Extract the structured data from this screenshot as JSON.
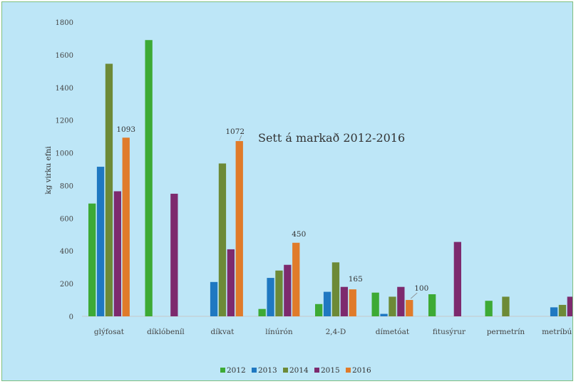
{
  "chart_data": {
    "type": "bar",
    "title": "Sett á markað 2012-2016",
    "xlabel": "",
    "ylabel": "kg virku efni",
    "ylim": [
      0,
      1800
    ],
    "yticks": [
      0,
      200,
      400,
      600,
      800,
      1000,
      1200,
      1400,
      1600,
      1800
    ],
    "grid": false,
    "legend_position": "bottom",
    "categories": [
      "glýfosat",
      "díklóbeníl",
      "díkvat",
      "línúrón",
      "2,4-D",
      "dímetóat",
      "fitusýrur",
      "permetrín",
      "metríbúsín"
    ],
    "series": [
      {
        "name": "2012",
        "color": "#3daa35",
        "values": [
          690,
          1690,
          null,
          45,
          75,
          145,
          135,
          95,
          null
        ]
      },
      {
        "name": "2013",
        "color": "#1f78c1",
        "values": [
          915,
          null,
          210,
          235,
          150,
          15,
          null,
          null,
          55
        ]
      },
      {
        "name": "2014",
        "color": "#6d8a37",
        "values": [
          1545,
          null,
          935,
          280,
          330,
          120,
          null,
          120,
          70
        ]
      },
      {
        "name": "2015",
        "color": "#7d2a6e",
        "values": [
          765,
          750,
          410,
          315,
          180,
          180,
          455,
          null,
          120
        ]
      },
      {
        "name": "2016",
        "color": "#e07b2a",
        "values": [
          1093,
          null,
          1072,
          450,
          165,
          100,
          null,
          null,
          null
        ]
      }
    ],
    "data_labels": [
      {
        "category": "glýfosat",
        "series": "2016",
        "text": "1093"
      },
      {
        "category": "díkvat",
        "series": "2016",
        "text": "1072"
      },
      {
        "category": "línúrón",
        "series": "2016",
        "text": "450"
      },
      {
        "category": "2,4-D",
        "series": "2016",
        "text": "165"
      },
      {
        "category": "dímetóat",
        "series": "2016",
        "text": "100"
      }
    ]
  }
}
